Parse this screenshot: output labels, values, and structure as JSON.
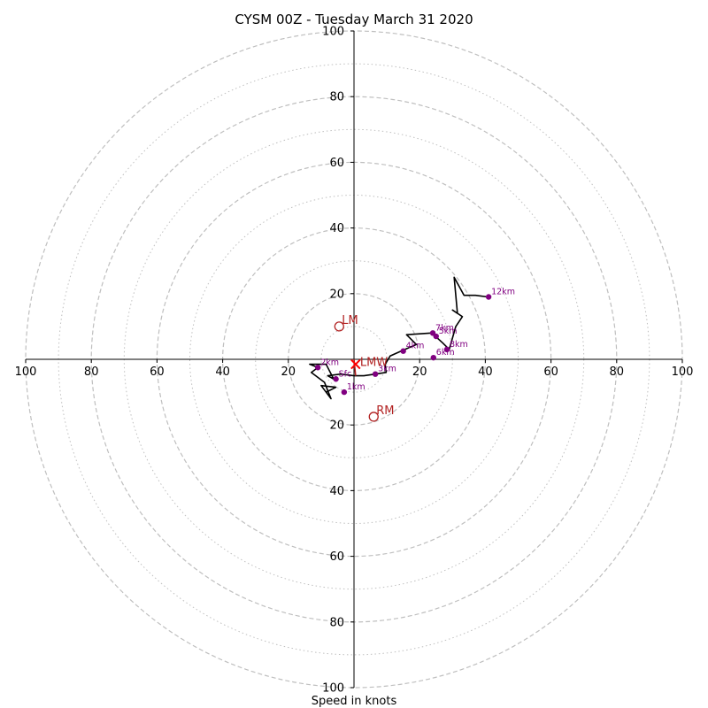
{
  "chart_data": {
    "type": "hodograph",
    "title": "CYSM 00Z - Tuesday March 31 2020",
    "xlabel": "Speed in knots",
    "ylabel": "",
    "xlim": [
      -100,
      100
    ],
    "ylim": [
      -100,
      100
    ],
    "rings_major": [
      20,
      40,
      60,
      80,
      100
    ],
    "rings_minor": [
      10,
      30,
      50,
      70,
      90
    ],
    "x_tick_labels": [
      {
        "v": -100,
        "label": "100"
      },
      {
        "v": -80,
        "label": "80"
      },
      {
        "v": -60,
        "label": "60"
      },
      {
        "v": -40,
        "label": "40"
      },
      {
        "v": -20,
        "label": "20"
      },
      {
        "v": 20,
        "label": "20"
      },
      {
        "v": 40,
        "label": "40"
      },
      {
        "v": 60,
        "label": "60"
      },
      {
        "v": 80,
        "label": "80"
      },
      {
        "v": 100,
        "label": "100"
      }
    ],
    "y_tick_labels": [
      {
        "v": 100,
        "label": "100"
      },
      {
        "v": 80,
        "label": "80"
      },
      {
        "v": 60,
        "label": "60"
      },
      {
        "v": 40,
        "label": "40"
      },
      {
        "v": 20,
        "label": "20"
      },
      {
        "v": -20,
        "label": "20"
      },
      {
        "v": -40,
        "label": "40"
      },
      {
        "v": -60,
        "label": "60"
      },
      {
        "v": -80,
        "label": "80"
      },
      {
        "v": -100,
        "label": "100"
      }
    ],
    "trace_dark": [
      [
        -8.5,
        -10
      ],
      [
        -5.5,
        -8.5
      ],
      [
        -10,
        -8
      ],
      [
        -7,
        -12
      ],
      [
        -9,
        -7
      ],
      [
        -13,
        -4
      ],
      [
        -11,
        -2.5
      ],
      [
        -13.5,
        -1.5
      ],
      [
        -8.5,
        -1.5
      ],
      [
        -6.2,
        -6
      ],
      [
        -8,
        -5
      ],
      [
        -4,
        -4.5
      ],
      [
        0,
        -5
      ],
      [
        3,
        -5
      ],
      [
        6.5,
        -4.5
      ],
      [
        9.8,
        -4
      ],
      [
        9.5,
        -1.5
      ],
      [
        11,
        1
      ],
      [
        15,
        2.8
      ],
      [
        19,
        4.5
      ],
      [
        16,
        7.5
      ],
      [
        23.5,
        8
      ],
      [
        24.8,
        7
      ],
      [
        27,
        5
      ],
      [
        29,
        3
      ],
      [
        31,
        10
      ],
      [
        33,
        13
      ],
      [
        30,
        15
      ],
      [
        31.5,
        14
      ],
      [
        30.5,
        25
      ],
      [
        33.5,
        19.5
      ],
      [
        37,
        19.5
      ],
      [
        40.7,
        19
      ]
    ],
    "trace_red": [
      [
        0,
        0
      ],
      [
        0.5,
        -5
      ]
    ],
    "height_markers": [
      {
        "label": "Sfc",
        "x": -5.5,
        "y": -6
      },
      {
        "label": "1km",
        "x": -3,
        "y": -10
      },
      {
        "label": "2km",
        "x": -11,
        "y": -2.5
      },
      {
        "label": "3km",
        "x": 6.5,
        "y": -4.5
      },
      {
        "label": "4km",
        "x": 15,
        "y": 2.5
      },
      {
        "label": "5km",
        "x": 25,
        "y": 7
      },
      {
        "label": "6km",
        "x": 24.2,
        "y": 0.5
      },
      {
        "label": "7km",
        "x": 24,
        "y": 8
      },
      {
        "label": "8km",
        "x": 28.3,
        "y": 3
      },
      {
        "label": "12km",
        "x": 41,
        "y": 19
      }
    ],
    "storm_motions": [
      {
        "label": "LM",
        "x": -4.5,
        "y": 10
      },
      {
        "label": "RM",
        "x": 6,
        "y": -17.5
      },
      {
        "label": "LMW",
        "x": 0.5,
        "y": -1.5
      }
    ],
    "colors": {
      "ring": "#bfbfbf",
      "axis": "#000000",
      "trace": "#000000",
      "trace_red": "#b22222",
      "marker": "#800080",
      "storm": "#b22222",
      "lmw": "#ff0000"
    }
  }
}
